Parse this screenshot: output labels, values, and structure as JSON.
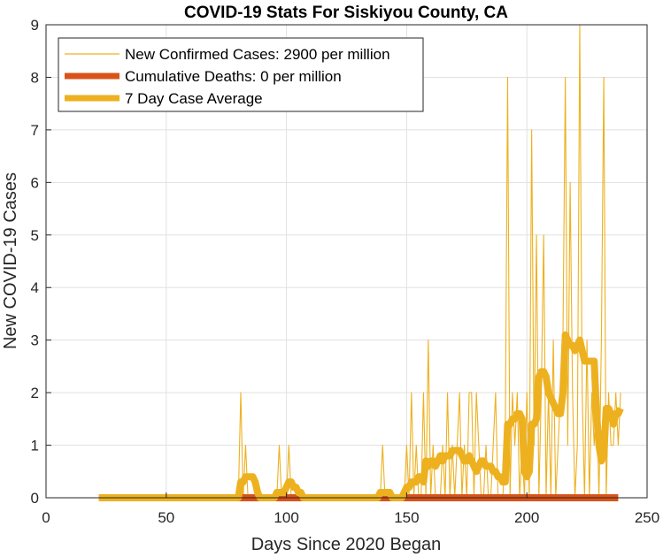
{
  "chart_data": {
    "type": "line",
    "title": "COVID-19 Stats For Siskiyou County, CA",
    "xlabel": "Days Since 2020 Began",
    "ylabel": "New COVID-19 Cases",
    "xlim": [
      0,
      250
    ],
    "ylim": [
      0,
      9
    ],
    "xticks": [
      0,
      50,
      100,
      150,
      200,
      250
    ],
    "yticks": [
      0,
      1,
      2,
      3,
      4,
      5,
      6,
      7,
      8,
      9
    ],
    "grid": true,
    "legend_position": "top-left",
    "series": [
      {
        "name": "New Confirmed Cases: 2900 per million",
        "color": "#EDB120",
        "style": "thin",
        "x": [
          22,
          79,
          80,
          81,
          82,
          83,
          84,
          85,
          86,
          87,
          88,
          89,
          90,
          94,
          95,
          96,
          97,
          98,
          99,
          100,
          101,
          102,
          103,
          104,
          105,
          106,
          107,
          108,
          138,
          139,
          140,
          141,
          142,
          143,
          144,
          145,
          146,
          147,
          148,
          149,
          150,
          151,
          152,
          153,
          154,
          155,
          156,
          157,
          158,
          159,
          160,
          161,
          162,
          163,
          164,
          165,
          166,
          167,
          168,
          169,
          170,
          171,
          172,
          173,
          174,
          175,
          176,
          177,
          178,
          179,
          180,
          181,
          182,
          183,
          184,
          185,
          186,
          187,
          188,
          189,
          190,
          191,
          192,
          193,
          194,
          195,
          196,
          197,
          198,
          199,
          200,
          201,
          202,
          203,
          204,
          205,
          206,
          207,
          208,
          209,
          210,
          211,
          212,
          213,
          214,
          215,
          216,
          217,
          218,
          219,
          220,
          221,
          222,
          223,
          224,
          225,
          226,
          227,
          228,
          229,
          230,
          231,
          232,
          233,
          234,
          235,
          236,
          237,
          238,
          239
        ],
        "y": [
          0,
          0,
          0,
          2,
          0,
          1,
          0,
          0,
          0,
          0,
          0,
          0,
          0,
          0,
          0,
          0,
          1,
          0,
          0,
          0,
          1,
          0,
          0,
          0,
          0,
          0,
          0,
          0,
          0,
          0,
          1,
          0,
          0,
          0,
          0,
          0,
          0,
          0,
          0,
          0,
          1,
          0,
          2,
          0,
          1,
          0,
          0,
          2,
          0,
          3,
          0,
          1,
          0,
          0,
          0,
          1,
          0,
          2,
          0,
          1,
          0,
          1,
          2,
          0,
          1,
          0,
          2,
          2,
          0,
          2,
          1,
          0,
          0,
          1,
          0,
          0,
          1,
          2,
          0,
          0,
          0,
          1,
          8,
          0,
          2,
          1,
          2,
          0,
          1,
          0,
          2,
          0,
          7,
          1,
          5,
          0,
          2,
          5,
          0,
          2,
          0,
          3,
          0,
          1,
          2,
          3,
          8,
          1,
          6,
          2,
          0,
          1,
          9,
          2,
          0,
          3,
          0,
          2,
          1,
          2,
          0,
          3,
          8,
          0,
          2,
          1,
          1,
          2,
          1,
          2
        ]
      },
      {
        "name": "Cumulative Deaths: 0 per million",
        "color": "#D95319",
        "style": "thick",
        "x": [
          22,
          238
        ],
        "y": [
          0,
          0
        ]
      },
      {
        "name": "7 Day Case Average",
        "color": "#EDB120",
        "style": "thick",
        "x": [
          22,
          80,
          81,
          82,
          83,
          84,
          86,
          87,
          88,
          89,
          94,
          95,
          96,
          97,
          98,
          99,
          100,
          101,
          102,
          103,
          104,
          105,
          106,
          107,
          108,
          138,
          139,
          140,
          141,
          142,
          143,
          144,
          145,
          146,
          147,
          148,
          149,
          150,
          151,
          152,
          153,
          154,
          155,
          156,
          157,
          158,
          159,
          160,
          161,
          162,
          163,
          164,
          165,
          166,
          167,
          168,
          169,
          170,
          171,
          172,
          173,
          174,
          175,
          176,
          177,
          178,
          179,
          180,
          181,
          182,
          183,
          184,
          185,
          186,
          187,
          188,
          189,
          190,
          191,
          192,
          193,
          194,
          195,
          196,
          197,
          198,
          199,
          200,
          201,
          202,
          203,
          204,
          205,
          206,
          207,
          208,
          209,
          210,
          211,
          212,
          213,
          214,
          215,
          216,
          217,
          218,
          219,
          220,
          221,
          222,
          223,
          224,
          225,
          226,
          227,
          228,
          229,
          230,
          231,
          232,
          233,
          234,
          235,
          236,
          237,
          238,
          239
        ],
        "y": [
          0,
          0,
          0.3,
          0.3,
          0.4,
          0.4,
          0.4,
          0.3,
          0.1,
          0,
          0,
          0,
          0.1,
          0.1,
          0.1,
          0.1,
          0.2,
          0.3,
          0.3,
          0.2,
          0.2,
          0.1,
          0.1,
          0,
          0,
          0,
          0.1,
          0.1,
          0.1,
          0.1,
          0.1,
          0,
          0,
          0,
          0,
          0,
          0.1,
          0.2,
          0.2,
          0.3,
          0.3,
          0.3,
          0.4,
          0.4,
          0.3,
          0.7,
          0.6,
          0.7,
          0.7,
          0.6,
          0.7,
          0.8,
          0.7,
          0.8,
          0.8,
          0.8,
          0.9,
          0.9,
          0.9,
          0.9,
          0.8,
          0.7,
          0.7,
          0.8,
          0.7,
          0.6,
          0.5,
          0.6,
          0.7,
          0.7,
          0.6,
          0.6,
          0.6,
          0.5,
          0.5,
          0.4,
          0.4,
          0.3,
          0.3,
          1.4,
          1.4,
          1.5,
          1.5,
          1.6,
          1.6,
          1.5,
          0.5,
          0.4,
          0.5,
          1.4,
          1.4,
          1.5,
          2.3,
          2.4,
          2.4,
          2.3,
          2.0,
          1.9,
          1.8,
          1.7,
          1.6,
          1.6,
          2.0,
          3.1,
          3.0,
          2.9,
          2.9,
          2.8,
          2.9,
          3.0,
          2.8,
          2.6,
          2.6,
          2.6,
          2.6,
          2.6,
          1.6,
          1.0,
          0.7,
          0.8,
          1.7,
          1.7,
          1.6,
          1.4,
          1.6,
          1.6,
          1.7
        ]
      }
    ]
  }
}
